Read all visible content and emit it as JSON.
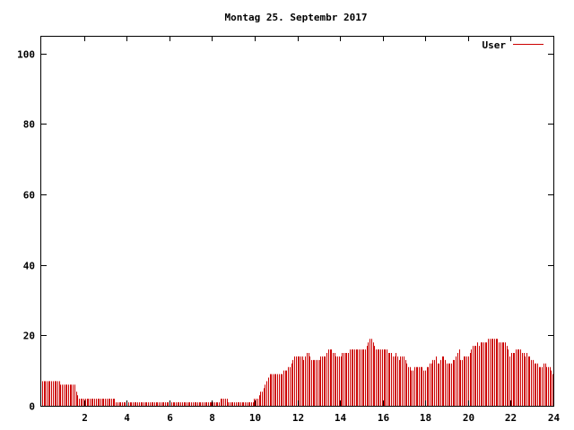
{
  "chart_data": {
    "type": "bar",
    "title": "Montag 25. Septembr 2017",
    "xlabel": "",
    "ylabel": "",
    "xlim": [
      0,
      24
    ],
    "ylim": [
      0,
      105
    ],
    "x_ticks": [
      2,
      4,
      6,
      8,
      10,
      12,
      14,
      16,
      18,
      20,
      22,
      24
    ],
    "y_ticks": [
      0,
      20,
      40,
      60,
      80,
      100
    ],
    "x_step_hours": 0.0833,
    "grid": false,
    "legend_position": "top-right",
    "series": [
      {
        "name": "User",
        "color": "#cc0000",
        "values": [
          7,
          7,
          7,
          7,
          7,
          7,
          7,
          7,
          7,
          7,
          7,
          7,
          6,
          6,
          6,
          6,
          6,
          6,
          6,
          6,
          6,
          6,
          4,
          3,
          2,
          2,
          2,
          2,
          2,
          2,
          2,
          2,
          2,
          2,
          2,
          2,
          2,
          2,
          2,
          2,
          2,
          2,
          2,
          2,
          2,
          2,
          2,
          2,
          1,
          1,
          1,
          1,
          1,
          1,
          1,
          1,
          1,
          1,
          1,
          1,
          1,
          1,
          1,
          1,
          1,
          1,
          1,
          1,
          1,
          1,
          1,
          1,
          1,
          1,
          1,
          1,
          1,
          1,
          1,
          1,
          1,
          1,
          1,
          1,
          1,
          1,
          1,
          1,
          1,
          1,
          1,
          1,
          1,
          1,
          1,
          1,
          1,
          1,
          1,
          1,
          1,
          1,
          1,
          1,
          1,
          1,
          1,
          1,
          1,
          1,
          1,
          1,
          1,
          1,
          1,
          1,
          2,
          2,
          2,
          2,
          2,
          1,
          1,
          1,
          1,
          1,
          1,
          1,
          1,
          1,
          1,
          1,
          1,
          1,
          1,
          1,
          1,
          1,
          2,
          2,
          2,
          3,
          4,
          4,
          5,
          6,
          7,
          8,
          9,
          9,
          9,
          9,
          9,
          9,
          9,
          9,
          9,
          10,
          10,
          10,
          11,
          11,
          12,
          13,
          14,
          14,
          14,
          14,
          14,
          14,
          13,
          14,
          15,
          15,
          14,
          13,
          13,
          13,
          13,
          13,
          13,
          14,
          14,
          14,
          14,
          15,
          16,
          16,
          16,
          15,
          15,
          14,
          14,
          14,
          14,
          15,
          15,
          15,
          15,
          15,
          16,
          16,
          16,
          16,
          16,
          16,
          16,
          16,
          16,
          16,
          16,
          17,
          18,
          19,
          19,
          18,
          17,
          16,
          16,
          16,
          16,
          16,
          16,
          16,
          16,
          15,
          15,
          15,
          14,
          14,
          15,
          14,
          13,
          14,
          14,
          14,
          13,
          12,
          11,
          11,
          10,
          10,
          11,
          11,
          11,
          11,
          11,
          11,
          10,
          10,
          11,
          11,
          12,
          12,
          13,
          13,
          14,
          12,
          12,
          13,
          14,
          14,
          13,
          12,
          12,
          12,
          12,
          13,
          13,
          14,
          15,
          16,
          13,
          13,
          14,
          14,
          14,
          14,
          15,
          16,
          17,
          17,
          17,
          18,
          17,
          18,
          18,
          18,
          18,
          18,
          19,
          19,
          19,
          19,
          19,
          19,
          19,
          18,
          18,
          18,
          18,
          18,
          17,
          16,
          14,
          15,
          15,
          15,
          16,
          16,
          16,
          16,
          15,
          15,
          14,
          15,
          14,
          14,
          13,
          13,
          12,
          12,
          12,
          11,
          11,
          11,
          12,
          12,
          11,
          11,
          11,
          10,
          9
        ]
      }
    ]
  }
}
